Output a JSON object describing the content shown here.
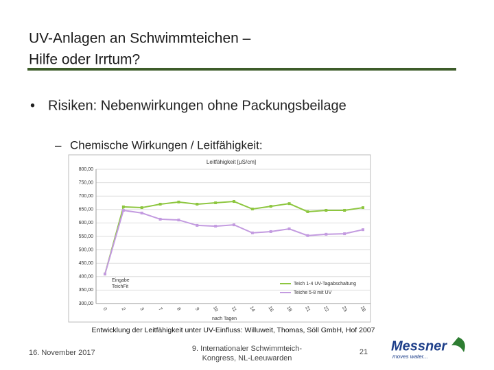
{
  "header": {
    "title": [
      "UV-Anlagen an Schwimmteichen –",
      "Hilfe oder Irrtum?"
    ]
  },
  "bullet": "Risiken: Nebenwirkungen ohne Packungsbeilage",
  "subbullet": "Chemische Wirkungen / Leitfähigkeit:",
  "chart_data": {
    "type": "line",
    "title": "Leitfähigkeit [µS/cm]",
    "x_label": "nach Tagen",
    "annotation": [
      "Eingabe",
      "TeichFit"
    ],
    "categories": [
      "0",
      "2",
      "3",
      "7",
      "8",
      "9",
      "10",
      "11",
      "14",
      "16",
      "18",
      "21",
      "22",
      "23",
      "28"
    ],
    "series": [
      {
        "name": "Teich 1-4 UV-Tagabschaltung",
        "color": "#8dc63f",
        "values": [
          410,
          660,
          657,
          670,
          678,
          670,
          675,
          680,
          652,
          662,
          672,
          642,
          647,
          647,
          657
        ]
      },
      {
        "name": "Teiche 5-8 mit UV",
        "color": "#c39be0",
        "values": [
          410,
          647,
          637,
          614,
          611,
          591,
          588,
          593,
          563,
          568,
          578,
          553,
          558,
          560,
          575
        ]
      }
    ],
    "ylim": [
      300,
      800
    ],
    "yticks": [
      {
        "value": 300,
        "label": "300,00"
      },
      {
        "value": 350,
        "label": "350,00"
      },
      {
        "value": 400,
        "label": "400,00"
      },
      {
        "value": 450,
        "label": "450,00"
      },
      {
        "value": 500,
        "label": "500,00"
      },
      {
        "value": 550,
        "label": "550,00"
      },
      {
        "value": 600,
        "label": "600,00"
      },
      {
        "value": 650,
        "label": "650,00"
      },
      {
        "value": 700,
        "label": "700,00"
      },
      {
        "value": 750,
        "label": "750,00"
      },
      {
        "value": 800,
        "label": "800,00"
      }
    ],
    "grid": true,
    "legend": "lower right"
  },
  "caption": "Entwicklung der Leitfähigkeit unter UV-Einfluss: Willuweit, Thomas, Söll GmbH, Hof 2007",
  "footer": {
    "date": "16. November 2017",
    "event": [
      "9. Internationaler Schwimmteich-",
      "Kongress, NL-Leeuwarden"
    ],
    "page": "21",
    "logo": "Messner",
    "slogan": "moves water..."
  }
}
